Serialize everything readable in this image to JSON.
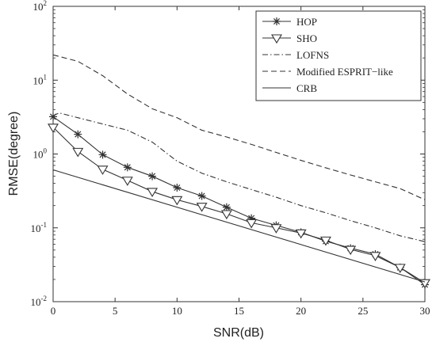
{
  "chart_data": {
    "type": "line",
    "xlabel": "SNR(dB)",
    "ylabel": "RMSE(degree)",
    "xlim": [
      0,
      30
    ],
    "ylim": [
      0.01,
      100
    ],
    "yscale": "log",
    "grid": false,
    "legend_position": "top-right",
    "x_ticks": [
      "0",
      "5",
      "10",
      "15",
      "20",
      "25",
      "30"
    ],
    "y_ticks": [
      {
        "base": "10",
        "exp": "-2"
      },
      {
        "base": "10",
        "exp": "-1"
      },
      {
        "base": "10",
        "exp": "0"
      },
      {
        "base": "10",
        "exp": "1"
      },
      {
        "base": "10",
        "exp": "2"
      }
    ],
    "series": [
      {
        "name": "HOP",
        "style": "solid-star",
        "x": [
          0,
          2,
          4,
          6,
          8,
          10,
          12,
          14,
          16,
          18,
          20,
          22,
          24,
          26,
          28,
          30
        ],
        "y": [
          3.2,
          1.85,
          0.98,
          0.66,
          0.5,
          0.35,
          0.27,
          0.19,
          0.135,
          0.108,
          0.087,
          0.066,
          0.053,
          0.044,
          0.029,
          0.017
        ]
      },
      {
        "name": "SHO",
        "style": "solid-triangle",
        "x": [
          0,
          2,
          4,
          6,
          8,
          10,
          12,
          14,
          16,
          18,
          20,
          22,
          24,
          26,
          28,
          30
        ],
        "y": [
          2.3,
          1.08,
          0.62,
          0.44,
          0.31,
          0.24,
          0.195,
          0.155,
          0.117,
          0.1,
          0.085,
          0.068,
          0.051,
          0.042,
          0.029,
          0.018
        ]
      },
      {
        "name": "LOFNS",
        "style": "dashdot",
        "x": [
          0,
          0.5,
          2,
          4,
          6,
          8,
          10,
          12,
          14,
          16,
          18,
          20,
          22,
          24,
          26,
          28,
          30
        ],
        "y": [
          3.3,
          3.6,
          3.1,
          2.55,
          2.1,
          1.45,
          0.8,
          0.55,
          0.42,
          0.33,
          0.26,
          0.2,
          0.16,
          0.125,
          0.1,
          0.078,
          0.065
        ]
      },
      {
        "name": "Modified ESPRIT−like",
        "style": "dashed",
        "x": [
          0,
          2,
          4,
          6,
          8,
          10,
          12,
          14,
          16,
          18,
          20,
          22,
          24,
          26,
          28,
          30
        ],
        "y": [
          22,
          18,
          11.5,
          6.5,
          4.1,
          3.1,
          2.1,
          1.7,
          1.35,
          1.05,
          0.82,
          0.65,
          0.52,
          0.42,
          0.34,
          0.24
        ]
      },
      {
        "name": "CRB",
        "style": "solid",
        "x": [
          0,
          30
        ],
        "y": [
          0.61,
          0.0185
        ]
      }
    ]
  }
}
